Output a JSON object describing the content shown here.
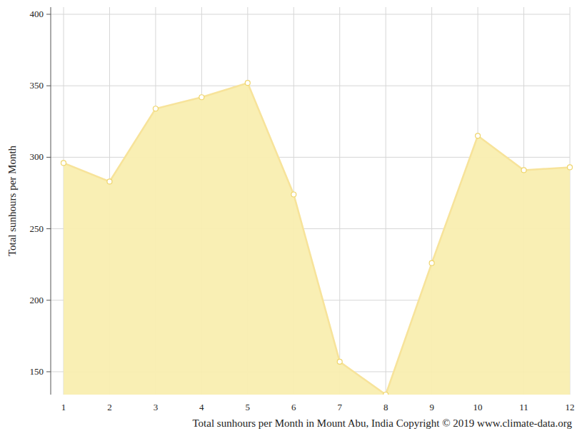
{
  "chart_data": {
    "type": "area",
    "title": "Total sunhours per Month in Mount Abu, India Copyright © 2019 www.climate-data.org",
    "y_label": "Total sunhours per Month",
    "x": [
      1,
      2,
      3,
      4,
      5,
      6,
      7,
      8,
      9,
      10,
      11,
      12
    ],
    "values": [
      296,
      283,
      334,
      342,
      352,
      274,
      157,
      134,
      226,
      315,
      291,
      293
    ],
    "color": "#f9eeb0",
    "xlim": [
      1,
      12
    ],
    "xticks": [
      1,
      2,
      3,
      4,
      5,
      6,
      7,
      8,
      9,
      10,
      11,
      12
    ],
    "ylim": [
      134,
      405
    ],
    "yticks": [
      150,
      200,
      250,
      300,
      350,
      400
    ],
    "grid": true,
    "marker": "circle"
  }
}
